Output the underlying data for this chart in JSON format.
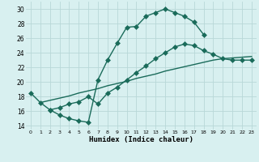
{
  "line1_x": [
    0,
    1,
    2,
    3,
    4,
    5,
    6,
    7,
    8,
    9,
    10,
    11,
    12,
    13,
    14,
    15,
    16,
    17,
    18
  ],
  "line1_y": [
    18.5,
    17.2,
    16.2,
    15.5,
    15.0,
    14.7,
    14.5,
    20.3,
    23.0,
    25.3,
    27.5,
    27.6,
    29.0,
    29.5,
    30.0,
    29.5,
    29.0,
    28.2,
    26.5
  ],
  "line2_x": [
    2,
    3,
    4,
    5,
    6,
    7,
    8,
    9,
    10,
    11,
    12,
    13,
    14,
    15,
    16,
    17,
    18,
    19,
    20,
    21,
    22,
    23
  ],
  "line2_y": [
    16.2,
    16.5,
    17.0,
    17.3,
    18.0,
    17.0,
    18.5,
    19.3,
    20.3,
    21.3,
    22.2,
    23.2,
    24.0,
    24.8,
    25.2,
    25.0,
    24.3,
    23.8,
    23.2,
    23.0,
    23.0,
    23.0
  ],
  "line3_x": [
    1,
    2,
    3,
    4,
    5,
    6,
    7,
    8,
    9,
    10,
    11,
    12,
    13,
    14,
    15,
    16,
    17,
    18,
    19,
    20,
    21,
    22,
    23
  ],
  "line3_y": [
    17.2,
    17.5,
    17.8,
    18.1,
    18.5,
    18.8,
    19.1,
    19.5,
    19.8,
    20.1,
    20.5,
    20.8,
    21.1,
    21.5,
    21.8,
    22.1,
    22.4,
    22.7,
    23.0,
    23.2,
    23.3,
    23.4,
    23.5
  ],
  "line_color": "#1a6b5a",
  "bg_color": "#d8f0f0",
  "grid_color": "#b8d8d8",
  "xlabel": "Humidex (Indice chaleur)",
  "ylim": [
    13.5,
    31.0
  ],
  "xlim": [
    -0.5,
    23.5
  ],
  "yticks": [
    14,
    16,
    18,
    20,
    22,
    24,
    26,
    28,
    30
  ],
  "xticks": [
    0,
    1,
    2,
    3,
    4,
    5,
    6,
    7,
    8,
    9,
    10,
    11,
    12,
    13,
    14,
    15,
    16,
    17,
    18,
    19,
    20,
    21,
    22,
    23
  ],
  "marker_size": 3.0,
  "line_width": 1.0
}
